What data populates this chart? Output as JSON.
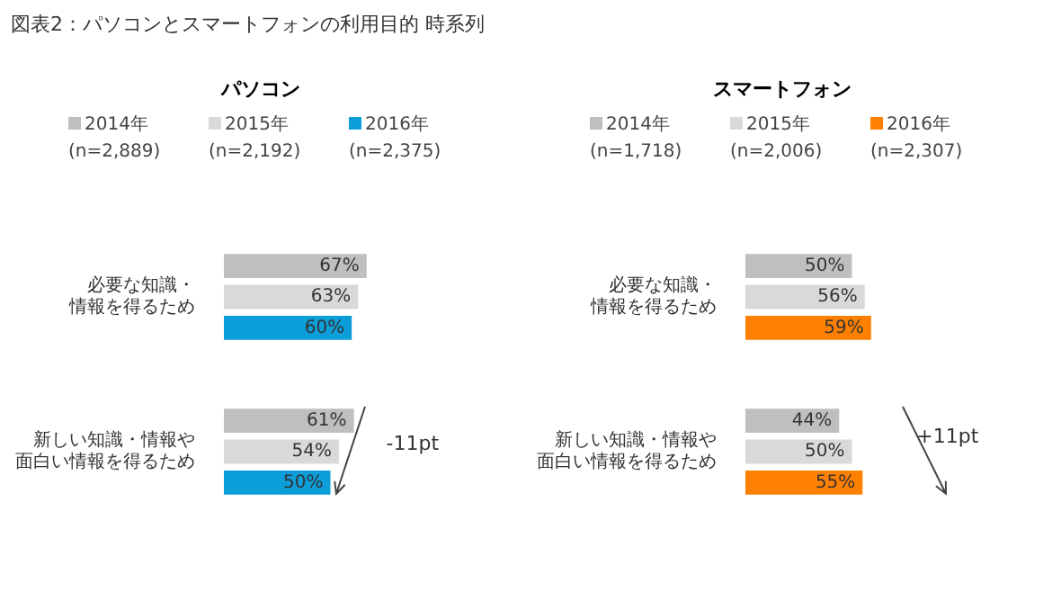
{
  "chart_data": [
    {
      "type": "bar",
      "orientation": "horizontal",
      "title": "パソコン",
      "annotations": [
        "図表2：パソコンとスマートフォンの利用目的 時系列",
        "-11pt"
      ],
      "categories": [
        "必要な知識・情報を得るため",
        "新しい知識・情報や面白い情報を得るため"
      ],
      "tick_labels": "y",
      "legend": "top",
      "series": [
        {
          "name": "2014年 (n=2,889)",
          "color": "#bfbfbf",
          "values": [
            67,
            61
          ],
          "value_labels": [
            "67%",
            "61%"
          ]
        },
        {
          "name": "2015年 (n=2,192)",
          "color": "#d9d9d9",
          "values": [
            63,
            54
          ],
          "value_labels": [
            "63%",
            "54%"
          ]
        },
        {
          "name": "2016年 (n=2,375)",
          "color": "#0b9ed9",
          "values": [
            60,
            50
          ],
          "value_labels": [
            "60%",
            "50%"
          ]
        }
      ]
    },
    {
      "type": "bar",
      "orientation": "horizontal",
      "title": "スマートフォン",
      "annotations": [
        "+11pt"
      ],
      "categories": [
        "必要な知識・情報を得るため",
        "新しい知識・情報や面白い情報を得るため"
      ],
      "tick_labels": "y",
      "legend": "top",
      "series": [
        {
          "name": "2014年 (n=1,718)",
          "color": "#bfbfbf",
          "values": [
            50,
            44
          ],
          "value_labels": [
            "50%",
            "44%"
          ]
        },
        {
          "name": "2015年 (n=2,006)",
          "color": "#d9d9d9",
          "values": [
            56,
            50
          ],
          "value_labels": [
            "56%",
            "50%"
          ]
        },
        {
          "name": "2016年 (n=2,307)",
          "color": "#ff8000",
          "values": [
            59,
            55
          ],
          "value_labels": [
            "59%",
            "55%"
          ]
        }
      ]
    }
  ]
}
